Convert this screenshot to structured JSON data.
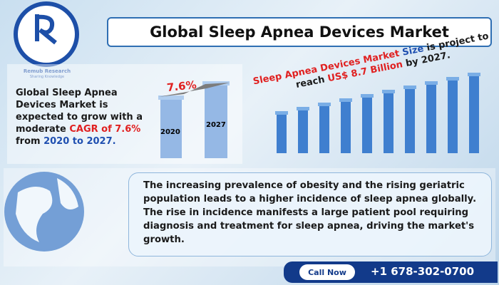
{
  "logo": {
    "name": "Remub Research",
    "tagline": "Sharing Knowledge"
  },
  "header": {
    "title": "Global Sleep Apnea Devices Market"
  },
  "cagr_panel": {
    "text": [
      "Global Sleep Apnea Devices Market is expected to grow with a moderate ",
      "CAGR of 7.6%",
      " from ",
      "2020 to 2027."
    ],
    "rate_label": "7.6%",
    "bar_labels": [
      "2020",
      "2027"
    ]
  },
  "size_panel": {
    "text": [
      "Sleep Apnea Devices Market",
      " Size",
      " is project to reach ",
      "US$ 8.7 Billion",
      " by 2027."
    ]
  },
  "summary": {
    "text": "The increasing prevalence of obesity and the rising geriatric population leads to a higher incidence of sleep apnea globally. The rise in incidence manifests a large patient pool requiring diagnosis and treatment for sleep apnea, driving the market's growth."
  },
  "contact": {
    "button": "Call Now",
    "phone": "+1 678-302-0700"
  }
}
